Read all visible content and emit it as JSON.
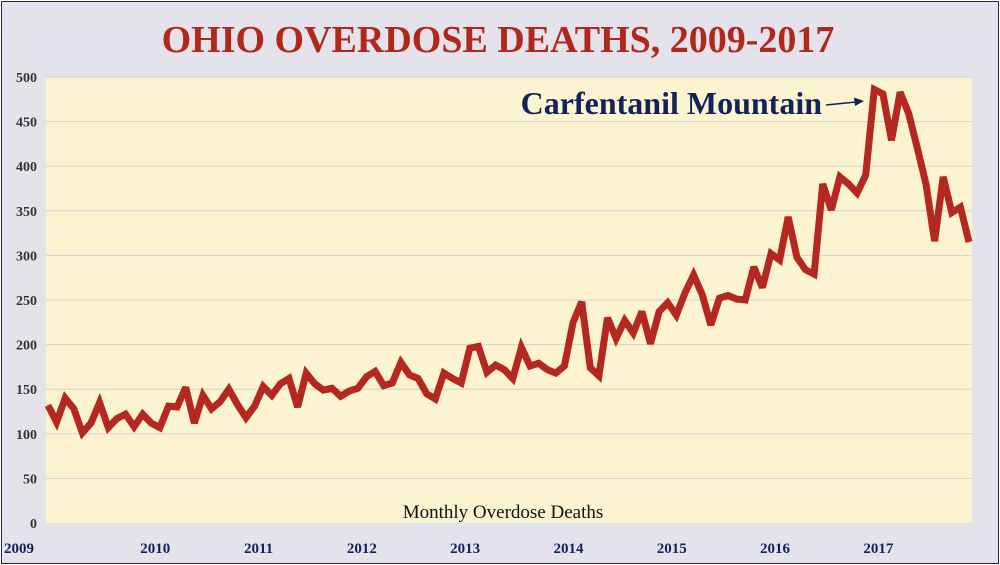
{
  "chart_data": {
    "type": "line",
    "title": "OHIO OVERDOSE DEATHS, 2009-2017",
    "xlabel": "",
    "ylabel": "",
    "inner_label": "Monthly Overdose Deaths",
    "annotation": "Carfentanil Mountain",
    "x_tick_labels": [
      "2009",
      "2010",
      "2011",
      "2012",
      "2013",
      "2014",
      "2015",
      "2016",
      "2017"
    ],
    "y_ticks": [
      0,
      50,
      100,
      150,
      200,
      250,
      300,
      350,
      400,
      450,
      500
    ],
    "ylim": [
      0,
      500
    ],
    "grid": true,
    "legend": "none",
    "colors": {
      "line": "#b5281f",
      "plot_background": "#fcf3d0",
      "title": "#b1271c",
      "annotation": "#12235a"
    },
    "series": [
      {
        "values": [
          132,
          113,
          140,
          128,
          101,
          112,
          135,
          107,
          117,
          122,
          108,
          122,
          112,
          107,
          131,
          130,
          152,
          112,
          143,
          128,
          136,
          150,
          133,
          118,
          131,
          153,
          143,
          156,
          162,
          130,
          168,
          156,
          149,
          151,
          142,
          148,
          151,
          164,
          170,
          154,
          157,
          180,
          166,
          162,
          145,
          139,
          168,
          162,
          157,
          196,
          198,
          169,
          177,
          172,
          162,
          197,
          176,
          179,
          172,
          168,
          176,
          225,
          248,
          174,
          165,
          230,
          207,
          227,
          213,
          237,
          201,
          237,
          247,
          233,
          258,
          278,
          256,
          222,
          252,
          255,
          251,
          250,
          287,
          264,
          302,
          295,
          343,
          298,
          284,
          279,
          380,
          351,
          388,
          380,
          370,
          390,
          486,
          481,
          429,
          483,
          459,
          420,
          380,
          316,
          388,
          348,
          354,
          315
        ]
      }
    ]
  }
}
